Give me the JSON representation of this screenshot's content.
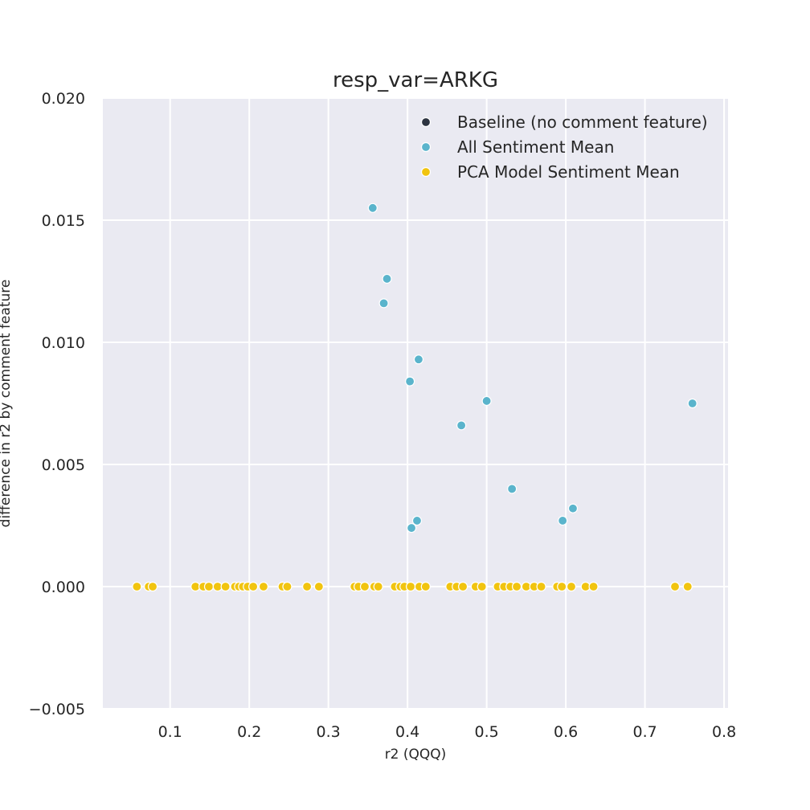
{
  "chart_data": {
    "type": "scatter",
    "title": "resp_var=ARKG",
    "xlabel": "r2 (QQQ)",
    "ylabel": "difference in r2 by comment feature",
    "xlim": [
      0.015,
      0.805
    ],
    "ylim": [
      -0.005,
      0.02
    ],
    "xticks": [
      "0.1",
      "0.2",
      "0.3",
      "0.4",
      "0.5",
      "0.6",
      "0.7",
      "0.8"
    ],
    "yticks": [
      "−0.005",
      "0.000",
      "0.005",
      "0.010",
      "0.015",
      "0.020"
    ],
    "grid": true,
    "legend_placement": "top-right",
    "series": [
      {
        "name": "Baseline (no comment feature)",
        "color": "#2d3441",
        "points": []
      },
      {
        "name": "All Sentiment Mean",
        "color": "#5ab4cc",
        "points": [
          [
            0.356,
            0.0155
          ],
          [
            0.374,
            0.0126
          ],
          [
            0.37,
            0.0116
          ],
          [
            0.414,
            0.0093
          ],
          [
            0.403,
            0.0084
          ],
          [
            0.5,
            0.0076
          ],
          [
            0.468,
            0.0066
          ],
          [
            0.76,
            0.0075
          ],
          [
            0.532,
            0.004
          ],
          [
            0.609,
            0.0032
          ],
          [
            0.596,
            0.0027
          ],
          [
            0.412,
            0.0027
          ],
          [
            0.405,
            0.0024
          ]
        ]
      },
      {
        "name": "PCA Model Sentiment Mean",
        "color": "#f1c40f",
        "points": [
          [
            0.058,
            0
          ],
          [
            0.073,
            0
          ],
          [
            0.078,
            0
          ],
          [
            0.132,
            0
          ],
          [
            0.142,
            0
          ],
          [
            0.149,
            0
          ],
          [
            0.16,
            0
          ],
          [
            0.17,
            0
          ],
          [
            0.182,
            0
          ],
          [
            0.187,
            0
          ],
          [
            0.192,
            0
          ],
          [
            0.198,
            0
          ],
          [
            0.205,
            0
          ],
          [
            0.218,
            0
          ],
          [
            0.242,
            0
          ],
          [
            0.248,
            0
          ],
          [
            0.273,
            0
          ],
          [
            0.288,
            0
          ],
          [
            0.333,
            0
          ],
          [
            0.338,
            0
          ],
          [
            0.346,
            0
          ],
          [
            0.358,
            0
          ],
          [
            0.363,
            0
          ],
          [
            0.384,
            0
          ],
          [
            0.391,
            0
          ],
          [
            0.396,
            0
          ],
          [
            0.404,
            0
          ],
          [
            0.415,
            0
          ],
          [
            0.423,
            0
          ],
          [
            0.454,
            0
          ],
          [
            0.462,
            0
          ],
          [
            0.47,
            0
          ],
          [
            0.486,
            0
          ],
          [
            0.494,
            0
          ],
          [
            0.514,
            0
          ],
          [
            0.522,
            0
          ],
          [
            0.53,
            0
          ],
          [
            0.538,
            0
          ],
          [
            0.55,
            0
          ],
          [
            0.56,
            0
          ],
          [
            0.569,
            0
          ],
          [
            0.589,
            0
          ],
          [
            0.595,
            0
          ],
          [
            0.607,
            0
          ],
          [
            0.625,
            0
          ],
          [
            0.635,
            0
          ],
          [
            0.738,
            0
          ],
          [
            0.754,
            0
          ]
        ]
      }
    ]
  }
}
